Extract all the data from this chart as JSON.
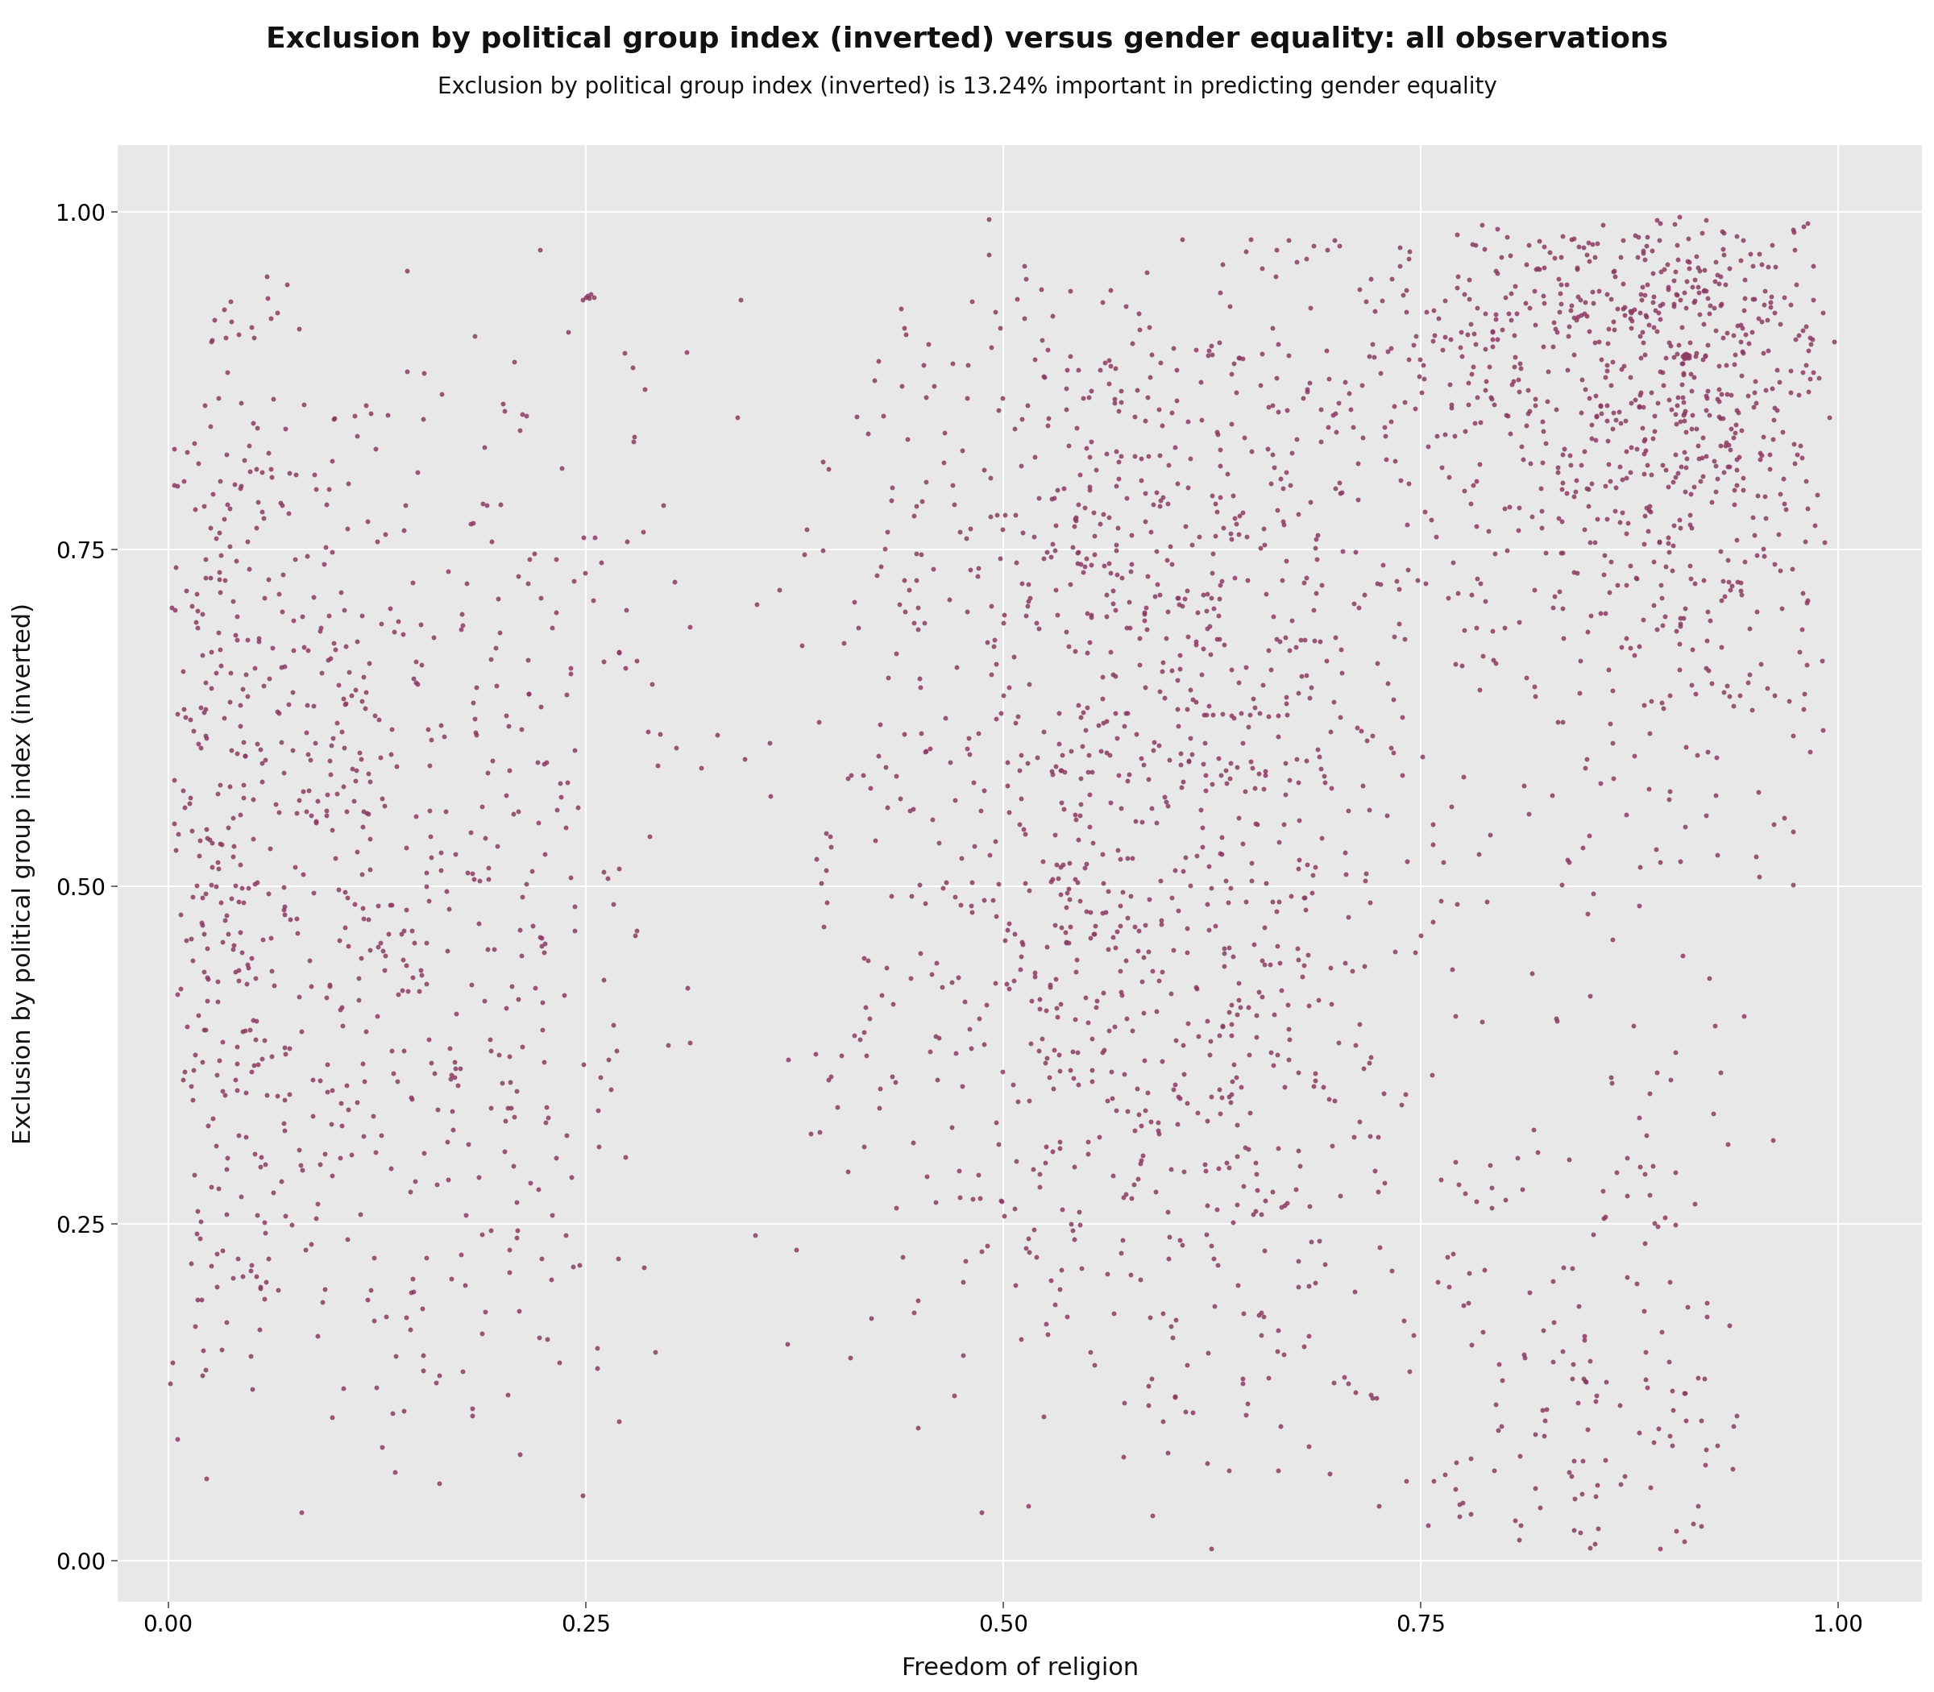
{
  "title": "Exclusion by political group index (inverted) versus gender equality: all observations",
  "subtitle": "Exclusion by political group index (inverted) is 13.24% important in predicting gender equality",
  "xlabel": "Freedom of religion",
  "ylabel": "Exclusion by political group index (inverted)",
  "xlim": [
    -0.03,
    1.05
  ],
  "ylim": [
    -0.03,
    1.05
  ],
  "xticks": [
    0.0,
    0.25,
    0.5,
    0.75,
    1.0
  ],
  "yticks": [
    0.0,
    0.25,
    0.5,
    0.75,
    1.0
  ],
  "dot_color": "#8B3A62",
  "dot_alpha": 0.85,
  "dot_size": 18,
  "background_color": "#e8e8e8",
  "grid_color": "#ffffff",
  "title_fontsize": 26,
  "subtitle_fontsize": 20,
  "label_fontsize": 22,
  "tick_fontsize": 20,
  "seed": 42,
  "n_points": 3500
}
